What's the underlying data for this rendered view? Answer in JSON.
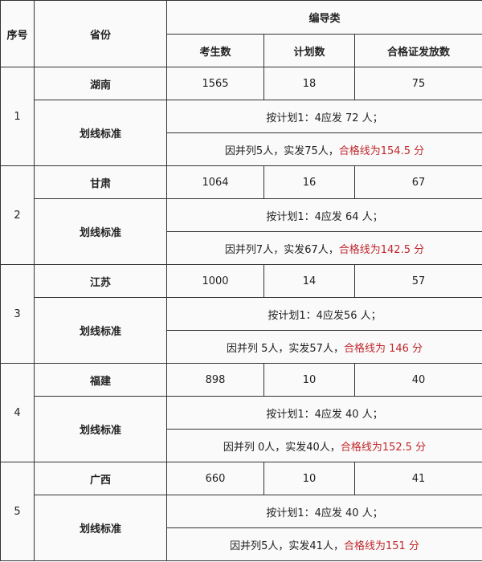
{
  "header": {
    "index": "序号",
    "province": "省份",
    "category": "编导类",
    "cols": [
      "考生数",
      "计划数",
      "合格证发放数"
    ]
  },
  "colors": {
    "text": "#222222",
    "highlight": "#c0282d",
    "border": "#333333"
  },
  "rows": [
    {
      "index": "1",
      "province": "湖南",
      "candidates": "1565",
      "plan": "18",
      "issued": "75",
      "standard_label": "划线标准",
      "plan_text": "按计划1：4应发 72 人；",
      "actual_text": "因并列5人，实发75人，",
      "line_text": "合格线为154.5 分"
    },
    {
      "index": "2",
      "province": "甘肃",
      "candidates": "1064",
      "plan": "16",
      "issued": "67",
      "standard_label": "划线标准",
      "plan_text": "按计划1：4应发 64 人；",
      "actual_text": "因并列7人，实发67人，",
      "line_text": "合格线为142.5 分"
    },
    {
      "index": "3",
      "province": "江苏",
      "candidates": "1000",
      "plan": "14",
      "issued": "57",
      "standard_label": "划线标准",
      "plan_text": "按计划1：4应发56 人；",
      "actual_text": "因并列 5人，实发57人，",
      "line_text": "合格线为 146 分"
    },
    {
      "index": "4",
      "province": "福建",
      "candidates": "898",
      "plan": "10",
      "issued": "40",
      "standard_label": "划线标准",
      "plan_text": "按计划1：4应发  40 人；",
      "actual_text": "因并列 0人，实发40人，",
      "line_text": "合格线为152.5 分"
    },
    {
      "index": "5",
      "province": "广西",
      "candidates": "660",
      "plan": "10",
      "issued": "41",
      "standard_label": "划线标准",
      "plan_text": "按计划1：4应发 40 人；",
      "actual_text": "因并列5人，实发41人，",
      "line_text": "合格线为151 分"
    }
  ]
}
